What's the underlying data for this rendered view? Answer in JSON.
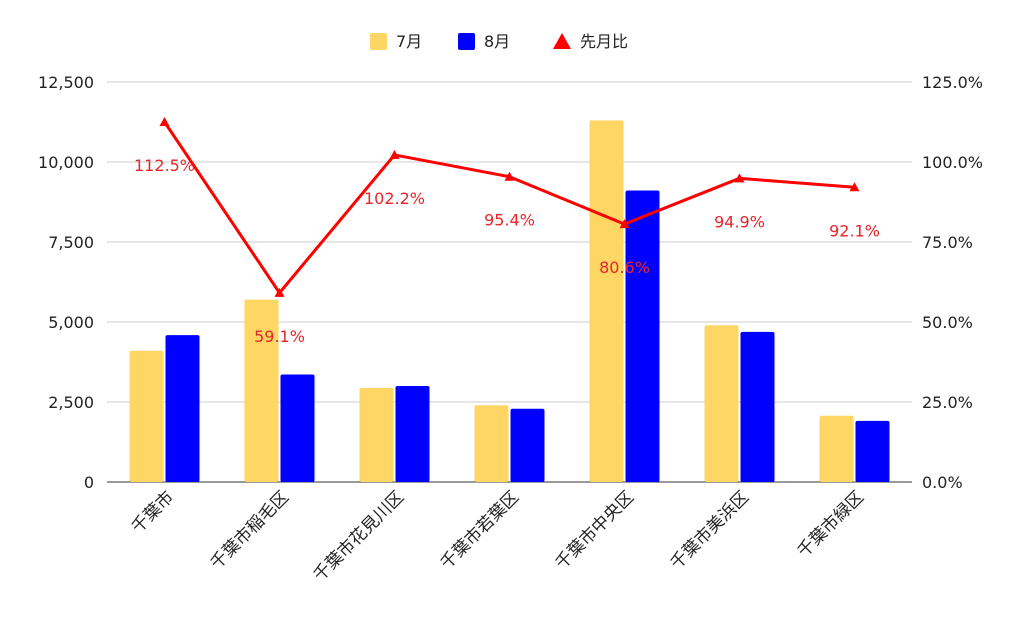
{
  "chart_data": {
    "type": "bar",
    "categories": [
      "千葉市",
      "千葉市稲毛区",
      "千葉市花見川区",
      "千葉市若葉区",
      "千葉市中央区",
      "千葉市美浜区",
      "千葉市緑区"
    ],
    "series": [
      {
        "name": "7月",
        "kind": "bar",
        "axis": "left",
        "color": "#fdd663",
        "values": [
          4100,
          5700,
          2940,
          2400,
          11300,
          4900,
          2070
        ]
      },
      {
        "name": "8月",
        "kind": "bar",
        "axis": "left",
        "color": "#0000ff",
        "values": [
          4590,
          3360,
          3000,
          2290,
          9110,
          4690,
          1910
        ]
      },
      {
        "name": "先月比",
        "kind": "line",
        "axis": "right",
        "color": "#ff0000",
        "values": [
          112.5,
          59.1,
          102.2,
          95.4,
          80.6,
          94.9,
          92.1
        ],
        "labels": [
          "112.5%",
          "59.1%",
          "102.2%",
          "95.4%",
          "80.6%",
          "94.9%",
          "92.1%"
        ]
      }
    ],
    "left_axis": {
      "min": 0,
      "max": 12500,
      "ticks": [
        "0",
        "2,500",
        "5,000",
        "7,500",
        "10,000",
        "12,500"
      ]
    },
    "right_axis": {
      "min": 0,
      "max": 125,
      "ticks": [
        "0.0%",
        "25.0%",
        "50.0%",
        "75.0%",
        "100.0%",
        "125.0%"
      ]
    },
    "grid": true,
    "legend_position": "top-center"
  }
}
